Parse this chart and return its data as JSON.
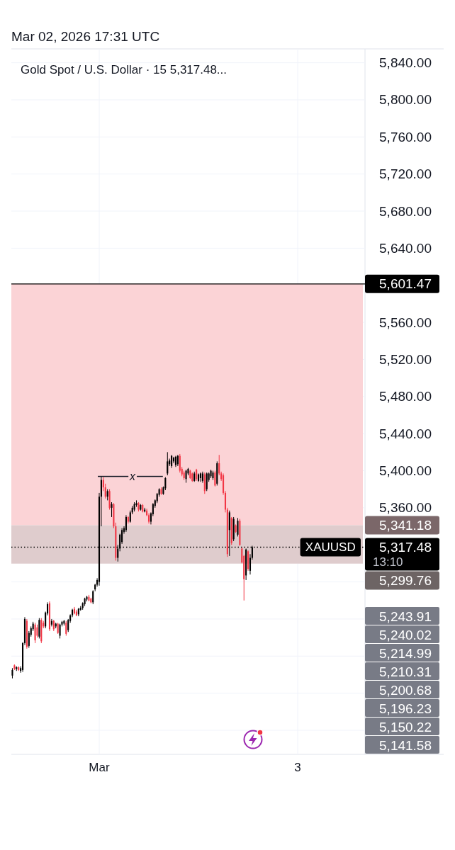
{
  "chart_data": {
    "type": "candlestick",
    "title": "Gold Spot / U.S. Dollar · 15 5,317.48...",
    "subtitle": "Mar 02, 2026 17:31 UTC",
    "categories": [
      null,
      null,
      null,
      null,
      null,
      null,
      null,
      null,
      null,
      null,
      null,
      null,
      null,
      null,
      null,
      null,
      null,
      null,
      null,
      null,
      null,
      null,
      null,
      null,
      null,
      null,
      null,
      null,
      null,
      null,
      null,
      null,
      null,
      null,
      null,
      null,
      null,
      null,
      null,
      null,
      null,
      null,
      "Mar",
      null,
      null,
      null,
      null,
      null,
      null,
      null,
      null,
      null,
      null,
      null,
      null,
      null,
      null,
      null,
      null,
      null,
      null,
      null,
      null,
      null,
      null,
      null,
      null,
      null,
      null,
      null,
      null,
      null,
      null,
      null,
      null,
      null,
      null,
      null,
      null,
      null,
      null,
      null,
      null,
      null,
      null,
      null,
      null,
      null,
      null,
      null,
      null,
      null,
      null,
      null,
      null,
      null,
      null,
      null,
      null,
      null,
      null,
      null,
      null,
      null,
      null,
      null,
      null,
      null,
      null,
      null,
      null,
      null,
      null,
      null,
      null,
      null,
      null,
      null,
      null,
      null,
      null,
      null,
      null,
      null,
      null,
      null,
      null,
      null,
      null,
      null,
      null,
      null,
      null,
      null,
      null,
      null,
      null,
      null,
      "3",
      null,
      null,
      null,
      null,
      null,
      null,
      null,
      null,
      null,
      null,
      null,
      null,
      null,
      null,
      null,
      null,
      null,
      null,
      null,
      null,
      null,
      null,
      null,
      null,
      null,
      null,
      null,
      null,
      null,
      null,
      null
    ],
    "ohlc": [
      [
        5179,
        5187,
        5176,
        5185
      ],
      [
        5190,
        5191,
        5185,
        5186
      ],
      [
        5186,
        5189,
        5184,
        5188
      ],
      [
        5188,
        5189,
        5184,
        5185
      ],
      [
        5184,
        5189,
        5182,
        5187
      ],
      [
        5185,
        5215,
        5183,
        5214
      ],
      [
        5214,
        5242,
        5212,
        5240
      ],
      [
        5238,
        5240,
        5208,
        5210
      ],
      [
        5211,
        5227,
        5209,
        5225
      ],
      [
        5223,
        5232,
        5221,
        5230
      ],
      [
        5229,
        5237,
        5227,
        5235
      ],
      [
        5234,
        5236,
        5214,
        5217
      ],
      [
        5231,
        5234,
        5220,
        5222
      ],
      [
        5221,
        5241,
        5219,
        5239
      ],
      [
        5239,
        5241,
        5214,
        5216
      ],
      [
        5236,
        5238,
        5230,
        5232
      ],
      [
        5232,
        5248,
        5230,
        5247
      ],
      [
        5246,
        5258,
        5244,
        5256
      ],
      [
        5257,
        5259,
        5227,
        5229
      ],
      [
        5234,
        5240,
        5232,
        5238
      ],
      [
        5238,
        5239,
        5227,
        5229
      ],
      [
        5232,
        5236,
        5230,
        5235
      ],
      [
        5235,
        5236,
        5224,
        5225
      ],
      [
        5222,
        5235,
        5219,
        5234
      ],
      [
        5234,
        5238,
        5232,
        5237
      ],
      [
        5235,
        5239,
        5233,
        5238
      ],
      [
        5236,
        5238,
        5222,
        5224
      ],
      [
        5228,
        5240,
        5226,
        5239
      ],
      [
        5238,
        5245,
        5236,
        5244
      ],
      [
        5244,
        5251,
        5242,
        5250
      ],
      [
        5251,
        5253,
        5245,
        5246
      ],
      [
        5248,
        5250,
        5243,
        5244
      ],
      [
        5245,
        5252,
        5243,
        5251
      ],
      [
        5250,
        5254,
        5249,
        5252
      ],
      [
        5252,
        5258,
        5250,
        5257
      ],
      [
        5256,
        5263,
        5254,
        5262
      ],
      [
        5261,
        5265,
        5259,
        5264
      ],
      [
        5264,
        5266,
        5259,
        5260
      ],
      [
        5262,
        5263,
        5257,
        5258
      ],
      [
        5258,
        5271,
        5256,
        5270
      ],
      [
        5272,
        5278,
        5270,
        5277
      ],
      [
        5277,
        5284,
        5275,
        5282
      ],
      [
        5280,
        5376,
        5276,
        5372
      ],
      [
        5372,
        5394,
        5340,
        5390
      ],
      [
        5390,
        5393,
        5378,
        5382
      ],
      [
        5382,
        5386,
        5370,
        5372
      ],
      [
        5372,
        5380,
        5368,
        5378
      ],
      [
        5378,
        5380,
        5358,
        5360
      ],
      [
        5360,
        5366,
        5350,
        5364
      ],
      [
        5364,
        5365,
        5338,
        5340
      ],
      [
        5340,
        5344,
        5303,
        5306
      ],
      [
        5306,
        5320,
        5302,
        5316
      ],
      [
        5316,
        5332,
        5313,
        5331
      ],
      [
        5323,
        5338,
        5321,
        5336
      ],
      [
        5334,
        5340,
        5332,
        5338
      ],
      [
        5336,
        5352,
        5334,
        5350
      ],
      [
        5350,
        5351,
        5343,
        5345
      ],
      [
        5345,
        5357,
        5344,
        5355
      ],
      [
        5355,
        5362,
        5353,
        5360
      ],
      [
        5358,
        5366,
        5356,
        5364
      ],
      [
        5363,
        5368,
        5361,
        5365
      ],
      [
        5365,
        5366,
        5356,
        5358
      ],
      [
        5358,
        5364,
        5357,
        5363
      ],
      [
        5363,
        5364,
        5355,
        5356
      ],
      [
        5356,
        5360,
        5355,
        5358
      ],
      [
        5357,
        5359,
        5351,
        5352
      ],
      [
        5352,
        5354,
        5343,
        5345
      ],
      [
        5345,
        5355,
        5342,
        5354
      ],
      [
        5353,
        5365,
        5351,
        5364
      ],
      [
        5362,
        5369,
        5360,
        5368
      ],
      [
        5367,
        5376,
        5365,
        5375
      ],
      [
        5374,
        5381,
        5372,
        5380
      ],
      [
        5380,
        5382,
        5374,
        5375
      ],
      [
        5375,
        5383,
        5374,
        5382
      ],
      [
        5381,
        5393,
        5379,
        5392
      ],
      [
        5397,
        5420,
        5395,
        5410
      ],
      [
        5407,
        5413,
        5405,
        5411
      ],
      [
        5405,
        5417,
        5403,
        5416
      ],
      [
        5410,
        5415,
        5408,
        5414
      ],
      [
        5406,
        5416,
        5404,
        5415
      ],
      [
        5407,
        5417,
        5405,
        5416
      ],
      [
        5416,
        5418,
        5398,
        5400
      ],
      [
        5402,
        5404,
        5394,
        5396
      ],
      [
        5398,
        5400,
        5390,
        5392
      ],
      [
        5391,
        5401,
        5387,
        5400
      ],
      [
        5397,
        5403,
        5395,
        5402
      ],
      [
        5400,
        5401,
        5391,
        5392
      ],
      [
        5397,
        5398,
        5388,
        5389
      ],
      [
        5389,
        5399,
        5388,
        5397
      ],
      [
        5401,
        5402,
        5389,
        5391
      ],
      [
        5389,
        5397,
        5388,
        5396
      ],
      [
        5392,
        5398,
        5388,
        5397
      ],
      [
        5389,
        5399,
        5387,
        5397
      ],
      [
        5396,
        5398,
        5375,
        5378
      ],
      [
        5380,
        5398,
        5378,
        5397
      ],
      [
        5390,
        5398,
        5388,
        5397
      ],
      [
        5394,
        5401,
        5392,
        5400
      ],
      [
        5392,
        5400,
        5390,
        5398
      ],
      [
        5398,
        5400,
        5383,
        5384
      ],
      [
        5386,
        5410,
        5384,
        5408
      ],
      [
        5408,
        5417,
        5395,
        5397
      ],
      [
        5397,
        5399,
        5389,
        5391
      ],
      [
        5395,
        5397,
        5374,
        5376
      ],
      [
        5376,
        5378,
        5355,
        5358
      ],
      [
        5358,
        5360,
        5307,
        5310
      ],
      [
        5336,
        5357,
        5308,
        5355
      ],
      [
        5349,
        5350,
        5320,
        5322
      ],
      [
        5326,
        5350,
        5324,
        5348
      ],
      [
        5341,
        5342,
        5333,
        5334
      ],
      [
        5331,
        5349,
        5329,
        5346
      ],
      [
        5346,
        5348,
        5319,
        5320
      ],
      [
        5316,
        5317,
        5300,
        5301
      ],
      [
        5308,
        5309,
        5260,
        5283
      ],
      [
        5287,
        5316,
        5282,
        5315
      ],
      [
        5313,
        5314,
        5292,
        5294
      ],
      [
        5292,
        5310,
        5288,
        5306
      ],
      [
        5306,
        5319,
        5304,
        5317.48
      ],
      null,
      null,
      null,
      null,
      null,
      null,
      null,
      null,
      null,
      null,
      null,
      null,
      null,
      null,
      null,
      null,
      null,
      null,
      null,
      null,
      null,
      null,
      null,
      null,
      null,
      null,
      null,
      null,
      null,
      null,
      null,
      null,
      null,
      null,
      null,
      null,
      null,
      null,
      null,
      null,
      null,
      null,
      null,
      null,
      null,
      null,
      null,
      null,
      null,
      null,
      null,
      null,
      null
    ],
    "ylim": [
      5094,
      5855
    ],
    "yticks": [
      {
        "value": 5120,
        "label": null
      },
      {
        "value": 5160,
        "label": null
      },
      {
        "value": 5200,
        "label": null
      },
      {
        "value": 5240,
        "label": null
      },
      {
        "value": 5280,
        "label": null
      },
      {
        "value": 5320,
        "label": null
      },
      {
        "value": 5360,
        "label": "5,360.00"
      },
      {
        "value": 5400,
        "label": "5,400.00"
      },
      {
        "value": 5440,
        "label": "5,440.00"
      },
      {
        "value": 5480,
        "label": "5,480.00"
      },
      {
        "value": 5520,
        "label": "5,520.00"
      },
      {
        "value": 5560,
        "label": "5,560.00"
      },
      {
        "value": 5600,
        "label": null
      },
      {
        "value": 5640,
        "label": "5,640.00"
      },
      {
        "value": 5680,
        "label": "5,680.00"
      },
      {
        "value": 5720,
        "label": "5,720.00"
      },
      {
        "value": 5760,
        "label": "5,760.00"
      },
      {
        "value": 5800,
        "label": "5,800.00"
      },
      {
        "value": 5840,
        "label": "5,840.00"
      }
    ],
    "grid": true,
    "ref_lines": [
      {
        "axis": "y",
        "value": 5601.47,
        "label": "5,601.47",
        "color": "#000000",
        "line_style": "solid"
      },
      {
        "axis": "y",
        "value": 5317.48,
        "label": "5,317.48",
        "color": "#000000",
        "line_style": "dotted"
      }
    ],
    "bands": [
      {
        "axis": "y",
        "from": 5341.18,
        "to": 5601.47,
        "label": "5,341.18",
        "color": "#fbd3d6"
      },
      {
        "axis": "y",
        "from": 5299.76,
        "to": 5341.18,
        "label": "5,299.76",
        "color": "#dfcccd"
      }
    ],
    "annotations": [
      "x",
      "XAUUSD",
      "13:10",
      "5,243.91",
      "5,240.02",
      "5,214.99",
      "5,210.31",
      "5,200.68",
      "5,196.23",
      "5,150.22",
      "5,141.58"
    ]
  }
}
